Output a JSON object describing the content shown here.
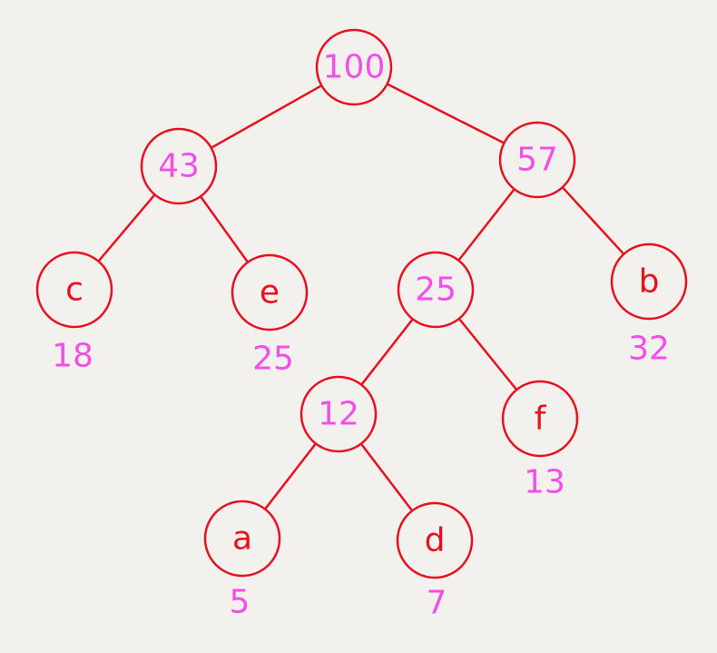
{
  "colors": {
    "background": "#f3f1ee",
    "edge": "#e8111f",
    "node_stroke": "#e8111f",
    "node_fill": "#f3f1ee",
    "internal_label": "#f34fe8",
    "leaf_label": "#e8111f",
    "weight_label": "#f34fe8"
  },
  "tree": {
    "nodes": [
      {
        "id": "n100",
        "label": "100",
        "kind": "internal"
      },
      {
        "id": "n43",
        "label": "43",
        "kind": "internal"
      },
      {
        "id": "n57",
        "label": "57",
        "kind": "internal"
      },
      {
        "id": "nc",
        "label": "c",
        "kind": "leaf",
        "weight": "18"
      },
      {
        "id": "ne",
        "label": "e",
        "kind": "leaf",
        "weight": "25"
      },
      {
        "id": "n25",
        "label": "25",
        "kind": "internal"
      },
      {
        "id": "nb",
        "label": "b",
        "kind": "leaf",
        "weight": "32"
      },
      {
        "id": "n12",
        "label": "12",
        "kind": "internal"
      },
      {
        "id": "nf",
        "label": "f",
        "kind": "leaf",
        "weight": "13"
      },
      {
        "id": "na",
        "label": "a",
        "kind": "leaf",
        "weight": "5"
      },
      {
        "id": "nd",
        "label": "d",
        "kind": "leaf",
        "weight": "7"
      }
    ],
    "edges": [
      {
        "from": "n100",
        "to": "n43"
      },
      {
        "from": "n100",
        "to": "n57"
      },
      {
        "from": "n43",
        "to": "nc"
      },
      {
        "from": "n43",
        "to": "ne"
      },
      {
        "from": "n57",
        "to": "n25"
      },
      {
        "from": "n57",
        "to": "nb"
      },
      {
        "from": "n25",
        "to": "n12"
      },
      {
        "from": "n25",
        "to": "nf"
      },
      {
        "from": "n12",
        "to": "na"
      },
      {
        "from": "n12",
        "to": "nd"
      }
    ]
  }
}
